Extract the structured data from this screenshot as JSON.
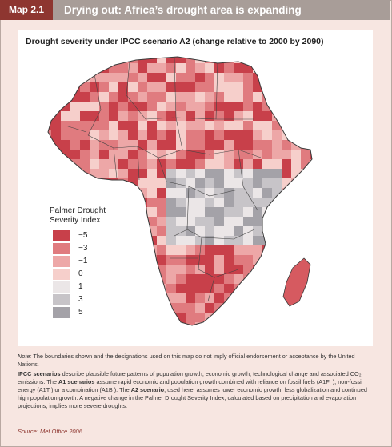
{
  "header": {
    "map_label": "Map 2.1",
    "title": "Drying out: Africa’s drought area is expanding"
  },
  "map": {
    "title": "Drought severity under IPCC scenario A2 (change relative to 2000 by 2090)",
    "legend": {
      "title": "Palmer Drought Severity Index",
      "items": [
        {
          "label": "−5",
          "color": "#c8404a"
        },
        {
          "label": "−3",
          "color": "#e07b7f"
        },
        {
          "label": "−1",
          "color": "#eda7a7"
        },
        {
          "label": "0",
          "color": "#f6cfcb"
        },
        {
          "label": "1",
          "color": "#ebe6e7"
        },
        {
          "label": "3",
          "color": "#c7c4c8"
        },
        {
          "label": "5",
          "color": "#a4a2a8"
        }
      ]
    }
  },
  "notes": {
    "note_label": "Note:",
    "note_text": "The boundaries shown and the designations used on this map do not imply official endorsement or acceptance by the United Nations.",
    "ipcc_label": "IPCC scenarios",
    "ipcc_text": "describe plausible future patterns of population growth, economic growth, technological change and associated CO₂ emissions. The",
    "a1_label": "A1 scenarios",
    "a1_text": "assume rapid economic and population growth combined with reliance on fossil fuels (A1FI ), non-fossil energy (A1T ) or a combination (A1B ). The",
    "a2_label": "A2 scenario",
    "a2_text": ", used here, assumes lower economic growth, less globalization and continued high population growth. A negative change in the Palmer Drought Severity Index, calculated based on precipitation and evaporation projections, implies more severe droughts."
  },
  "source": {
    "label": "Source:",
    "text": "Met Office 2006."
  }
}
